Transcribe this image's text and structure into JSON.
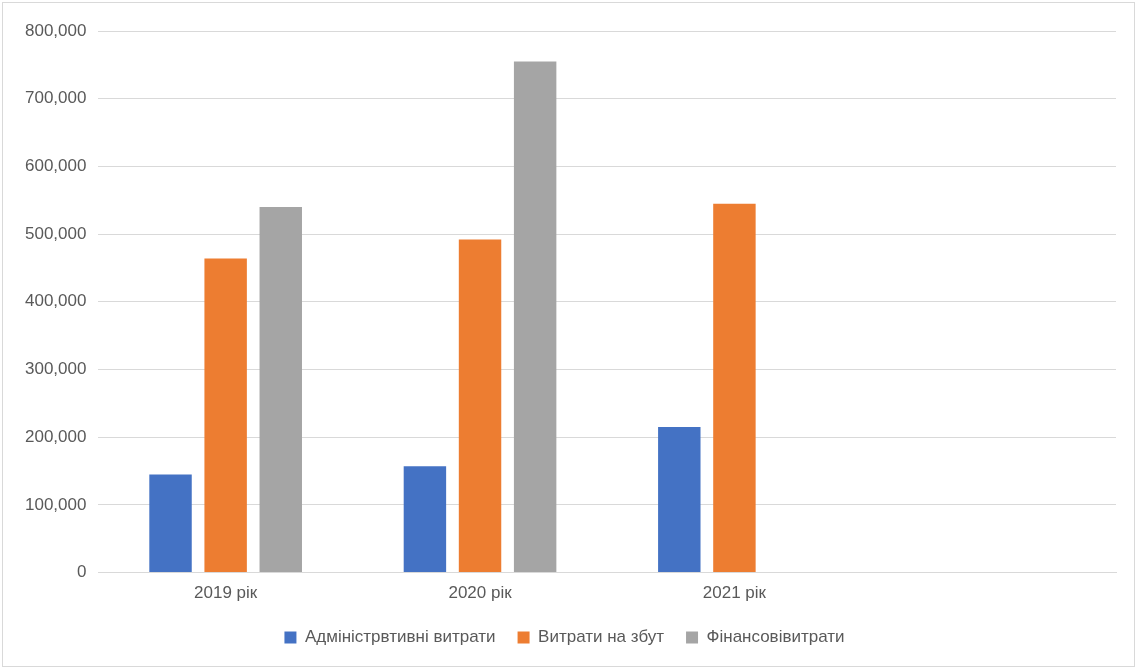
{
  "chart_data": {
    "type": "bar",
    "categories": [
      "2019 рік",
      "2020 рік",
      "2021 рік",
      null
    ],
    "series": [
      {
        "name": "Адміністрвтивні витрати",
        "color": "#4472c4",
        "values": [
          145000,
          157000,
          215000,
          null
        ]
      },
      {
        "name": "Витрати на збут",
        "color": "#ed7d31",
        "values": [
          464000,
          492000,
          545000,
          null
        ]
      },
      {
        "name": "Фінансовівитрати",
        "color": "#a5a5a5",
        "values": [
          540000,
          755000,
          null,
          null
        ]
      }
    ],
    "ylim": [
      0,
      800000
    ],
    "yticks": [
      0,
      {
        "value": 100000,
        "label": "100,000"
      },
      {
        "value": 200000,
        "label": "200,000"
      },
      {
        "value": 300000,
        "label": "300,000"
      },
      {
        "value": 400000,
        "label": "400,000"
      },
      {
        "value": 500000,
        "label": "500,000"
      },
      {
        "value": 600000,
        "label": "600,000"
      },
      {
        "value": 700000,
        "label": "700,000"
      },
      {
        "value": 800000,
        "label": "800,000"
      }
    ],
    "grid": "y",
    "legend": "bottom"
  }
}
